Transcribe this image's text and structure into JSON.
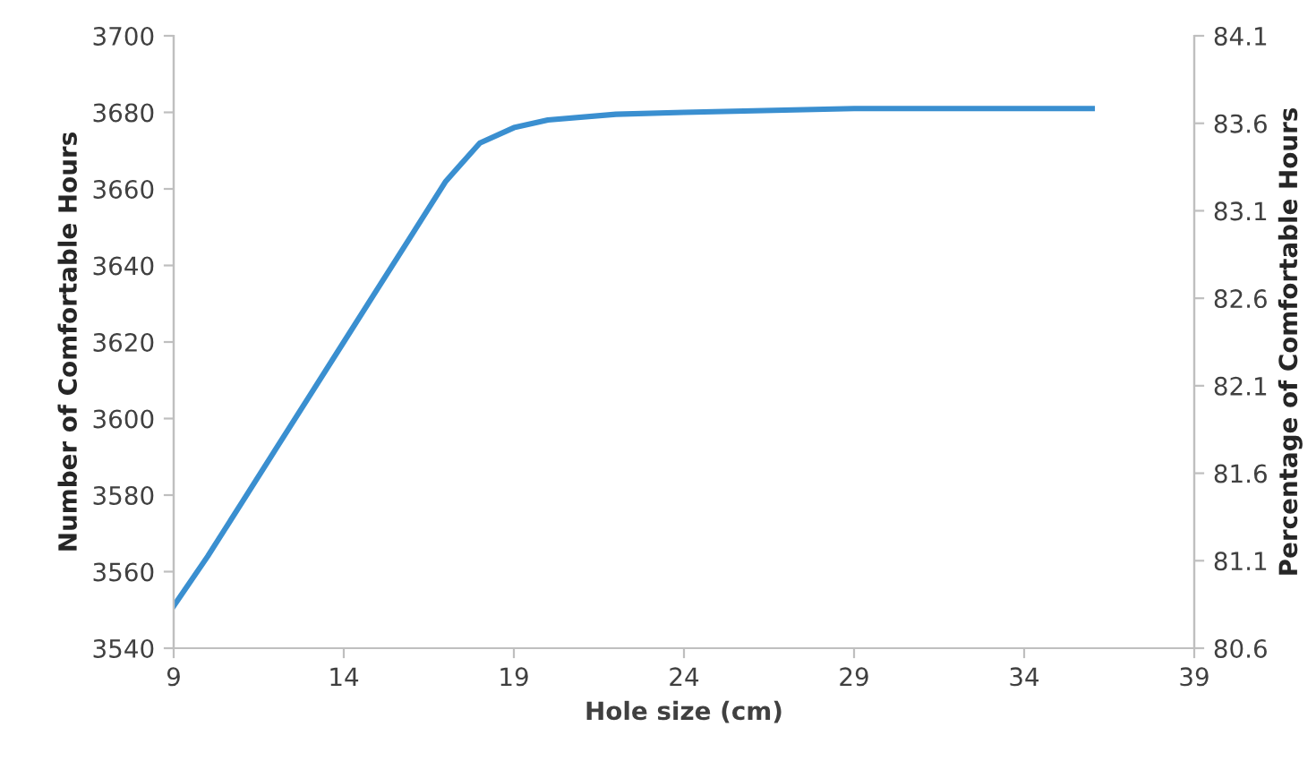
{
  "chart_data": {
    "type": "line",
    "xlabel": "Hole size (cm)",
    "ylabel": "Number of Comfortable Hours",
    "y2label": "Percentage of Comfortable Hours",
    "x": [
      9,
      10,
      11,
      12,
      13,
      14,
      15,
      16,
      17,
      18,
      19,
      20,
      22,
      24,
      29,
      34,
      36
    ],
    "series": [
      {
        "color": "#3a8fd0",
        "values": [
          3551,
          3564,
          3578,
          3592,
          3606,
          3620,
          3634,
          3648,
          3662,
          3672,
          3676,
          3678,
          3679.5,
          3680,
          3681,
          3681,
          3681
        ]
      }
    ],
    "xlim": [
      9,
      39
    ],
    "xticks": [
      9,
      14,
      19,
      24,
      29,
      34,
      39
    ],
    "ylim": [
      3540,
      3700
    ],
    "yticks": [
      3540,
      3560,
      3580,
      3600,
      3620,
      3640,
      3660,
      3680,
      3700
    ],
    "y2lim": [
      80.6,
      84.1
    ],
    "y2ticks": [
      80.6,
      81.1,
      81.6,
      82.1,
      82.6,
      83.1,
      83.6,
      84.1
    ],
    "grid": false,
    "legend": false,
    "marker": "none",
    "line_style": "solid"
  }
}
